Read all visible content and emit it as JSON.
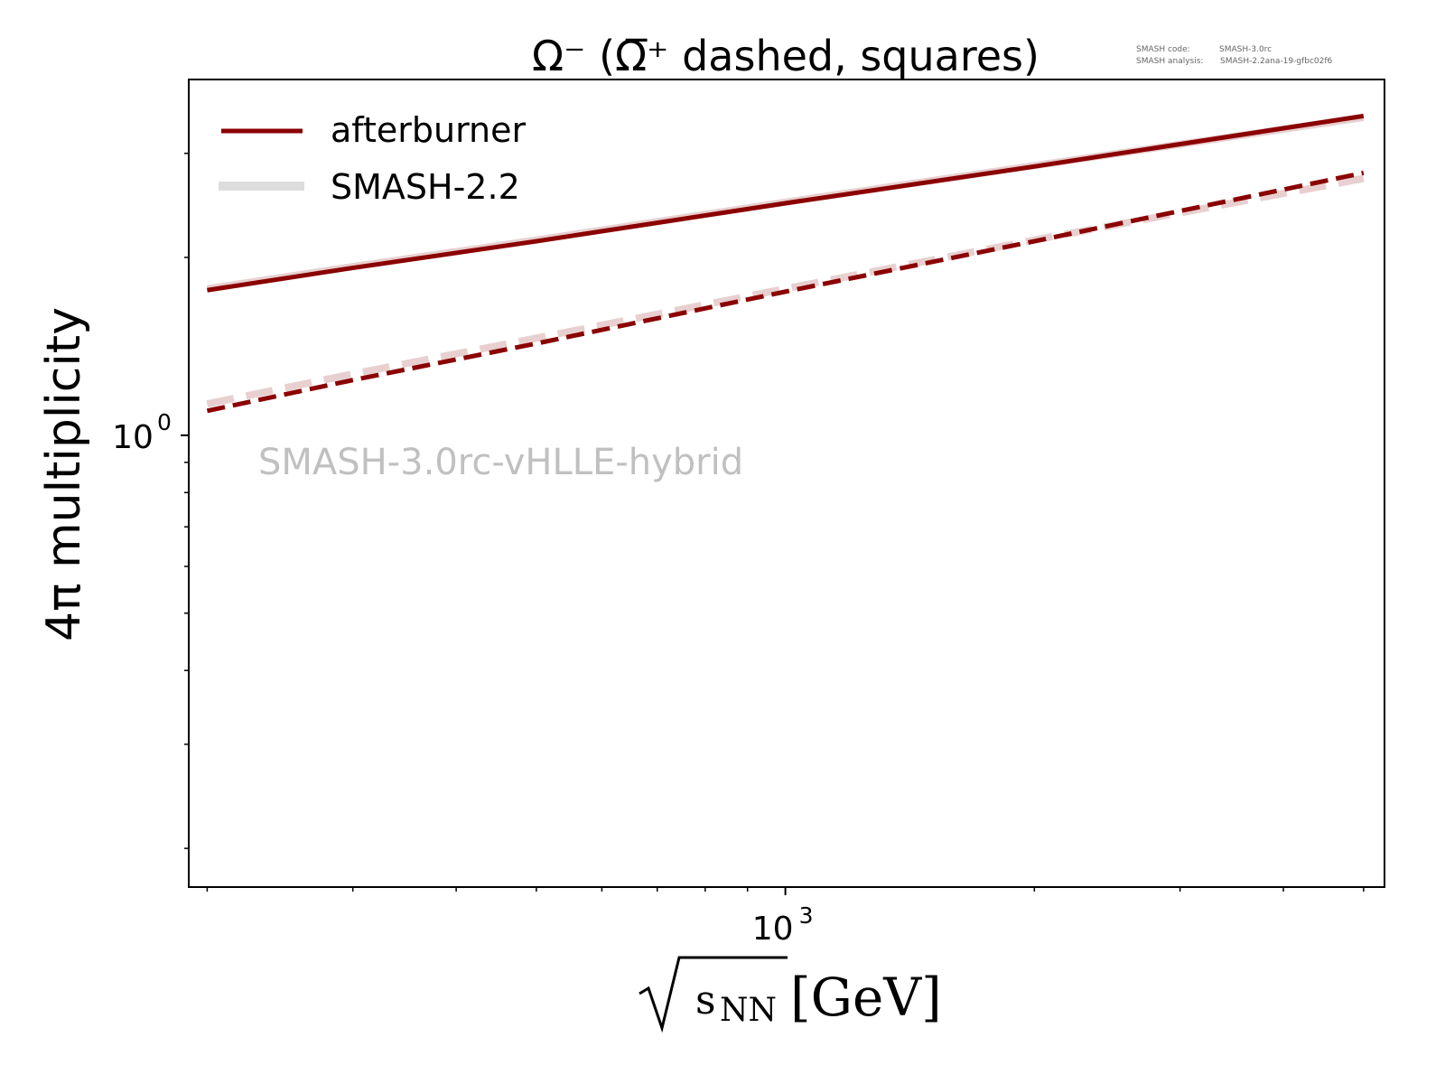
{
  "chart_data": {
    "type": "line",
    "title": "Ω⁻ (Ω̅⁺ dashed, squares)",
    "xlabel": "√sNN [GeV]",
    "xlabel_parts": {
      "var": "s",
      "sub": "NN",
      "unit": "[GeV]"
    },
    "ylabel": "4π multiplicity",
    "xscale": "log",
    "yscale": "log",
    "xlim": [
      190,
      5300
    ],
    "ylim": [
      0.172,
      4.0
    ],
    "x_major_ticks": [
      {
        "value": 1000,
        "base": "10",
        "exp": "3"
      }
    ],
    "x_minor_ticks": [
      200,
      300,
      400,
      500,
      600,
      700,
      800,
      900,
      2000,
      3000,
      4000,
      5000
    ],
    "y_major_ticks": [
      {
        "value": 1,
        "base": "10",
        "exp": "0"
      }
    ],
    "y_minor_ticks": [
      0.2,
      0.3,
      0.4,
      0.5,
      0.6,
      0.7,
      0.8,
      0.9,
      2,
      3
    ],
    "grid": false,
    "legend_position": "top-left",
    "legend": [
      {
        "label": "afterburner",
        "color": "#8b0000"
      },
      {
        "label": "SMASH-2.2",
        "color": "#dddddd"
      }
    ],
    "x": [
      200,
      300,
      500,
      1000,
      2000,
      5000
    ],
    "series": [
      {
        "name": "afterburner Ω⁻",
        "style": "solid",
        "color": "#8b0000",
        "values": [
          1.76,
          1.92,
          2.13,
          2.47,
          2.85,
          3.47
        ]
      },
      {
        "name": "afterburner Ω̅⁺",
        "style": "dashed",
        "color": "#8b0000",
        "values": [
          1.1,
          1.24,
          1.43,
          1.75,
          2.13,
          2.78
        ]
      },
      {
        "name": "SMASH-2.2 Ω⁻",
        "style": "solid",
        "color": "#e8d0d0",
        "values": [
          1.77,
          1.93,
          2.14,
          2.48,
          2.86,
          3.45
        ]
      },
      {
        "name": "SMASH-2.2 Ω̅⁺",
        "style": "dashed",
        "color": "#e8d0d0",
        "values": [
          1.13,
          1.27,
          1.46,
          1.77,
          2.14,
          2.72
        ]
      }
    ],
    "annotations": {
      "watermark": "SMASH-3.0rc-vHLLE-hybrid",
      "code_label": "SMASH code:",
      "code_value": "SMASH-3.0rc",
      "analysis_label": "SMASH analysis:",
      "analysis_value": "SMASH-2.2ana-19-gfbc02f6"
    }
  }
}
